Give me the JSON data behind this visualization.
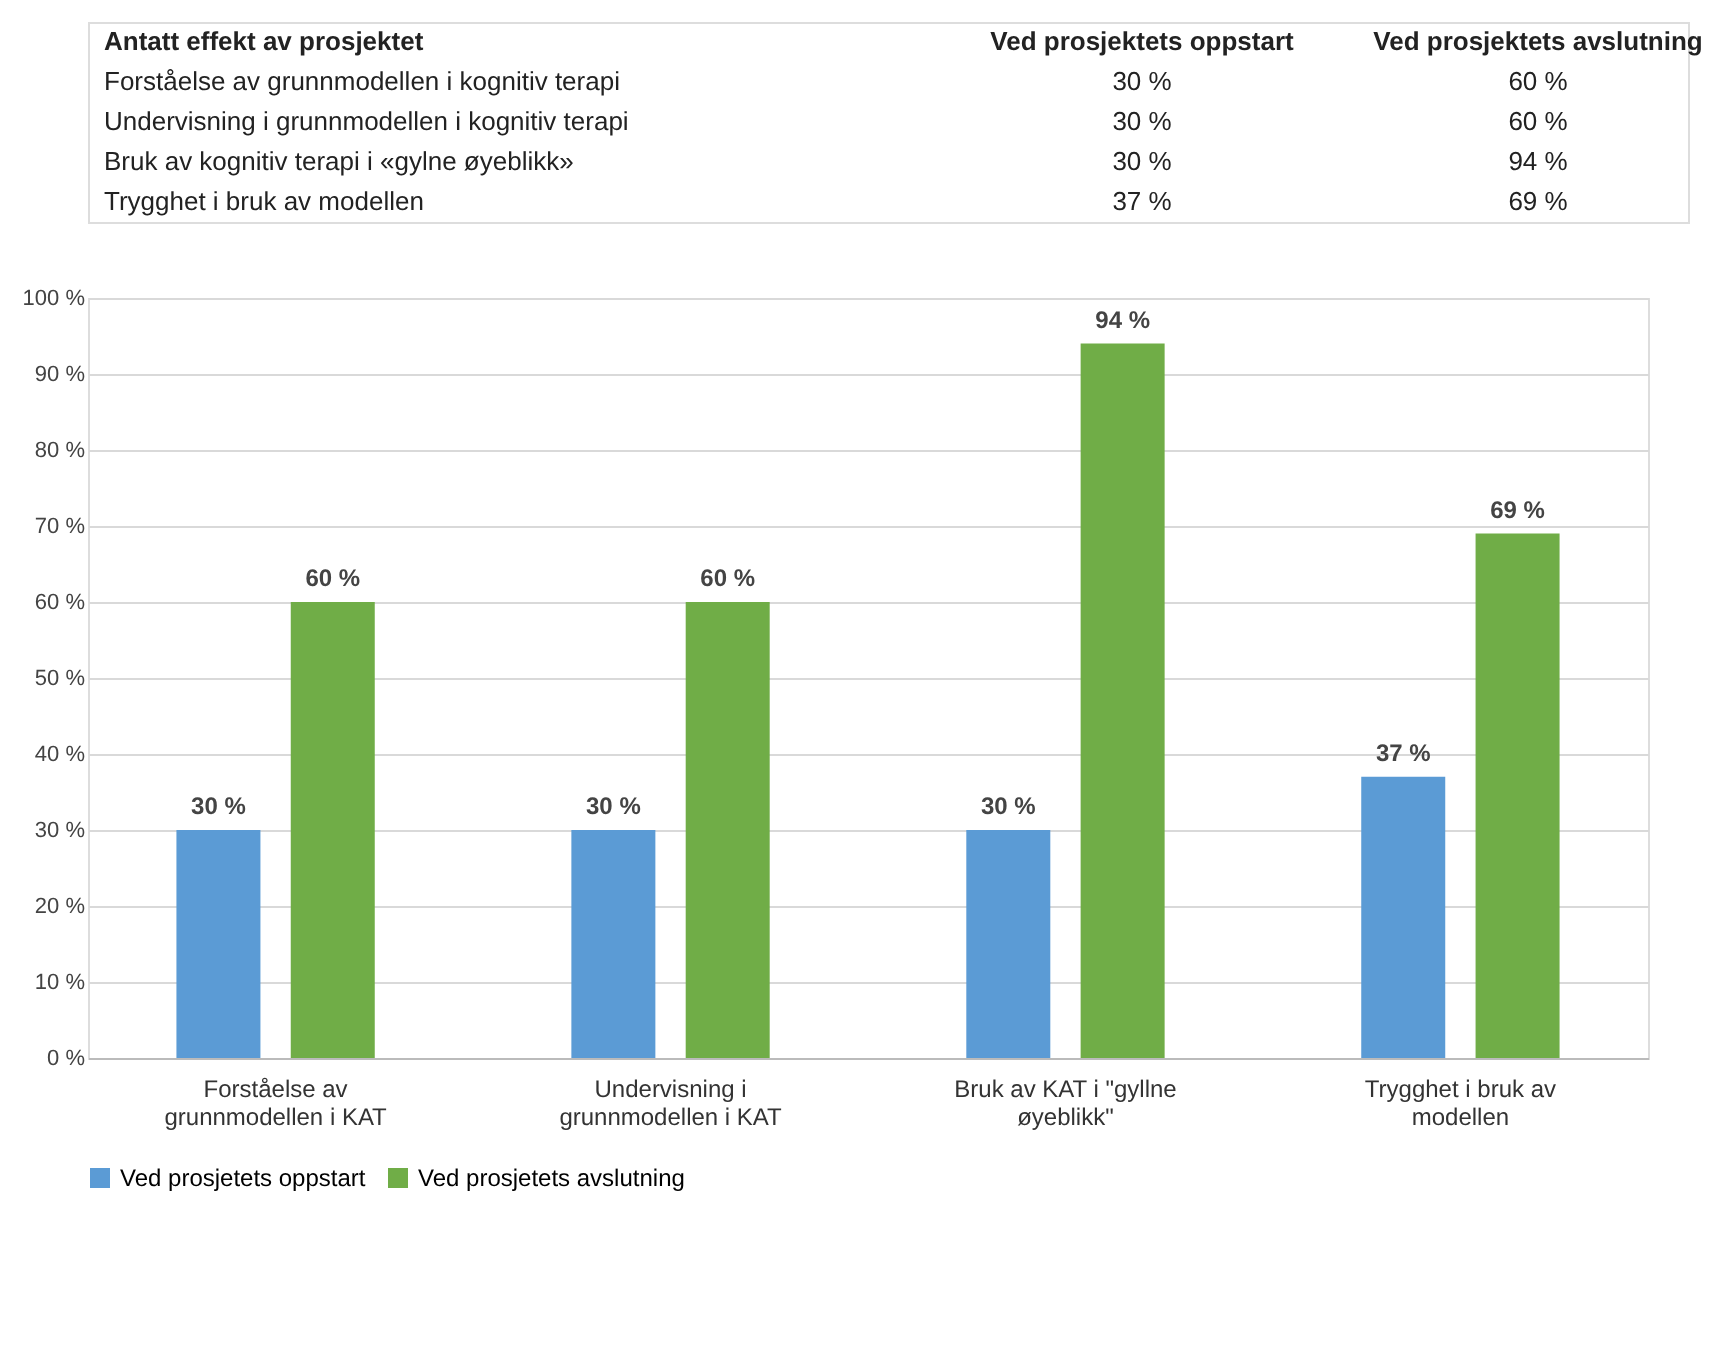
{
  "chart_data": {
    "type": "bar",
    "title": "Antatt effekt av prosjektet",
    "annotations": [
      "Ved prosjektets oppstart",
      "Ved prosjektets avslutning",
      "Forståelse av grunnmodellen i kognitiv terapi",
      "Undervisning i grunnmodellen i kognitiv terapi",
      "Bruk av kognitiv terapi i «gylne øyeblikk»",
      "Trygghet i bruk av modellen"
    ],
    "categories": [
      "Forståelse av grunnmodellen i KAT",
      "Undervisning i grunnmodellen i KAT",
      "Bruk av KAT i \"gyllne øyeblikk\"",
      "Trygghet i bruk av modellen"
    ],
    "series": [
      {
        "name": "Ved prosjetets oppstart",
        "color": "#5b9bd5",
        "values": [
          30,
          30,
          30,
          37
        ],
        "value_labels": [
          "30 %",
          "30 %",
          "30 %",
          "37 %"
        ]
      },
      {
        "name": "Ved prosjetets avslutning",
        "color": "#70ad47",
        "values": [
          60,
          60,
          94,
          69
        ],
        "value_labels": [
          "60 %",
          "60 %",
          "94 %",
          "69 %"
        ]
      }
    ],
    "ylim": [
      0,
      100
    ],
    "yticks": [
      {
        "value": 0,
        "label": "0 %"
      },
      {
        "value": 10,
        "label": "10 %"
      },
      {
        "value": 20,
        "label": "20 %"
      },
      {
        "value": 30,
        "label": "30 %"
      },
      {
        "value": 40,
        "label": "40 %"
      },
      {
        "value": 50,
        "label": "50 %"
      },
      {
        "value": 60,
        "label": "60 %"
      },
      {
        "value": 70,
        "label": "70 %"
      },
      {
        "value": 80,
        "label": "80 %"
      },
      {
        "value": 90,
        "label": "90 %"
      },
      {
        "value": 100,
        "label": "100 %"
      }
    ],
    "grid": "y",
    "legend": "bottom"
  }
}
